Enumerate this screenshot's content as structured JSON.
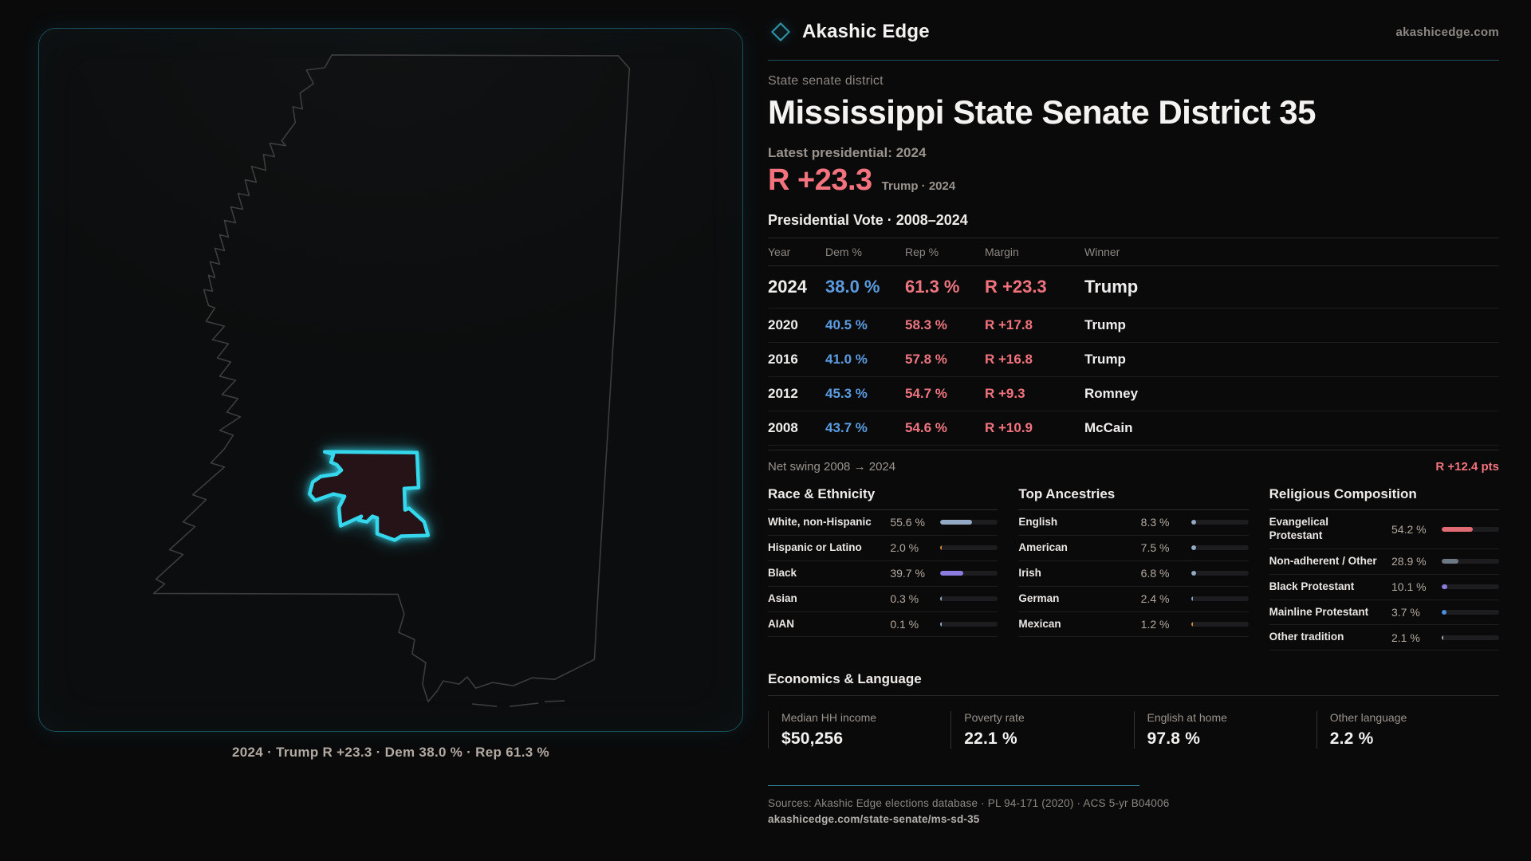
{
  "brand": {
    "name": "Akashic Edge",
    "domain": "akashicedge.com"
  },
  "map": {
    "caption": "2024 · Trump R +23.3 · Dem 38.0 % · Rep 61.3 %"
  },
  "profile": {
    "kicker": "State senate district",
    "title": "Mississippi State Senate District 35",
    "latest_label": "Latest presidential: 2024",
    "headline_margin": "R +23.3",
    "headline_context": "Trump · 2024"
  },
  "vote_table": {
    "title": "Presidential Vote · 2008–2024",
    "columns": [
      "Year",
      "Dem %",
      "Rep %",
      "Margin",
      "Winner"
    ],
    "rows": [
      {
        "year": "2024",
        "dem": "38.0 %",
        "rep": "61.3 %",
        "margin": "R +23.3",
        "winner": "Trump",
        "emphasis": true
      },
      {
        "year": "2020",
        "dem": "40.5 %",
        "rep": "58.3 %",
        "margin": "R +17.8",
        "winner": "Trump",
        "emphasis": false
      },
      {
        "year": "2016",
        "dem": "41.0 %",
        "rep": "57.8 %",
        "margin": "R +16.8",
        "winner": "Trump",
        "emphasis": false
      },
      {
        "year": "2012",
        "dem": "45.3 %",
        "rep": "54.7 %",
        "margin": "R +9.3",
        "winner": "Romney",
        "emphasis": false
      },
      {
        "year": "2008",
        "dem": "43.7 %",
        "rep": "54.6 %",
        "margin": "R +10.9",
        "winner": "McCain",
        "emphasis": false
      }
    ]
  },
  "net_swing": {
    "label": "Net swing 2008 → 2024",
    "value": "R +12.4 pts"
  },
  "demographics": {
    "columns": [
      {
        "title": "Race & Ethnicity",
        "rows": [
          {
            "label": "White, non-Hispanic",
            "value": "55.6 %",
            "pct": 55.6,
            "color": "#93a9c4"
          },
          {
            "label": "Hispanic or Latino",
            "value": "2.0 %",
            "pct": 2.0,
            "color": "#d08a3e"
          },
          {
            "label": "Black",
            "value": "39.7 %",
            "pct": 39.7,
            "color": "#8d7ce0"
          },
          {
            "label": "Asian",
            "value": "0.3 %",
            "pct": 0.3,
            "color": "#93a9c4"
          },
          {
            "label": "AIAN",
            "value": "0.1 %",
            "pct": 0.1,
            "color": "#93a9c4"
          }
        ]
      },
      {
        "title": "Top Ancestries",
        "rows": [
          {
            "label": "English",
            "value": "8.3 %",
            "pct": 8.3,
            "color": "#93a9c4"
          },
          {
            "label": "American",
            "value": "7.5 %",
            "pct": 7.5,
            "color": "#93a9c4"
          },
          {
            "label": "Irish",
            "value": "6.8 %",
            "pct": 6.8,
            "color": "#93a9c4"
          },
          {
            "label": "German",
            "value": "2.4 %",
            "pct": 2.4,
            "color": "#7ea3cf"
          },
          {
            "label": "Mexican",
            "value": "1.2 %",
            "pct": 1.2,
            "color": "#d08a3e"
          }
        ]
      },
      {
        "title": "Religious Composition",
        "rows": [
          {
            "label": "Evangelical Protestant",
            "value": "54.2 %",
            "pct": 54.2,
            "color": "#e06b73"
          },
          {
            "label": "Non-adherent / Other",
            "value": "28.9 %",
            "pct": 28.9,
            "color": "#6e7885"
          },
          {
            "label": "Black Protestant",
            "value": "10.1 %",
            "pct": 10.1,
            "color": "#8d7ce0"
          },
          {
            "label": "Mainline Protestant",
            "value": "3.7 %",
            "pct": 3.7,
            "color": "#4b8fe2"
          },
          {
            "label": "Other tradition",
            "value": "2.1 %",
            "pct": 2.1,
            "color": "#a9a9a9"
          }
        ]
      }
    ]
  },
  "economics": {
    "title": "Economics & Language",
    "stats": [
      {
        "label": "Median HH income",
        "value": "$50,256"
      },
      {
        "label": "Poverty rate",
        "value": "22.1 %"
      },
      {
        "label": "English at home",
        "value": "97.8 %"
      },
      {
        "label": "Other language",
        "value": "2.2 %"
      }
    ]
  },
  "footer": {
    "sources": "Sources: Akashic Edge elections database · PL 94-171 (2020) · ACS 5-yr B04006",
    "permalink": "akashicedge.com/state-senate/ms-sd-35"
  },
  "colors": {
    "accent_teal": "#2aa0b4",
    "district_cyan": "#35d7ec",
    "dem_blue": "#5b9ce0",
    "rep_red": "#ef7680",
    "margin_red": "#f2737d"
  },
  "chart_data": [
    {
      "type": "table",
      "title": "Presidential Vote · 2008–2024",
      "columns": [
        "Year",
        "Dem %",
        "Rep %",
        "Margin",
        "Winner"
      ],
      "rows": [
        [
          "2024",
          38.0,
          61.3,
          "R +23.3",
          "Trump"
        ],
        [
          "2020",
          40.5,
          58.3,
          "R +17.8",
          "Trump"
        ],
        [
          "2016",
          41.0,
          57.8,
          "R +16.8",
          "Trump"
        ],
        [
          "2012",
          45.3,
          54.7,
          "R +9.3",
          "Romney"
        ],
        [
          "2008",
          43.7,
          54.6,
          "R +10.9",
          "McCain"
        ]
      ],
      "annotations": [
        "Net swing 2008 → 2024: R +12.4 pts",
        "Latest presidential 2024: R +23.3 Trump"
      ]
    },
    {
      "type": "bar",
      "title": "Race & Ethnicity",
      "categories": [
        "White, non-Hispanic",
        "Hispanic or Latino",
        "Black",
        "Asian",
        "AIAN"
      ],
      "values": [
        55.6,
        2.0,
        39.7,
        0.3,
        0.1
      ],
      "xlim": [
        0,
        100
      ],
      "unit": "%"
    },
    {
      "type": "bar",
      "title": "Top Ancestries",
      "categories": [
        "English",
        "American",
        "Irish",
        "German",
        "Mexican"
      ],
      "values": [
        8.3,
        7.5,
        6.8,
        2.4,
        1.2
      ],
      "xlim": [
        0,
        100
      ],
      "unit": "%"
    },
    {
      "type": "bar",
      "title": "Religious Composition",
      "categories": [
        "Evangelical Protestant",
        "Non-adherent / Other",
        "Black Protestant",
        "Mainline Protestant",
        "Other tradition"
      ],
      "values": [
        54.2,
        28.9,
        10.1,
        3.7,
        2.1
      ],
      "xlim": [
        0,
        100
      ],
      "unit": "%"
    },
    {
      "type": "bar",
      "title": "Economics & Language",
      "categories": [
        "Median HH income ($)",
        "Poverty rate (%)",
        "English at home (%)",
        "Other language (%)"
      ],
      "values": [
        50256,
        22.1,
        97.8,
        2.2
      ]
    }
  ]
}
